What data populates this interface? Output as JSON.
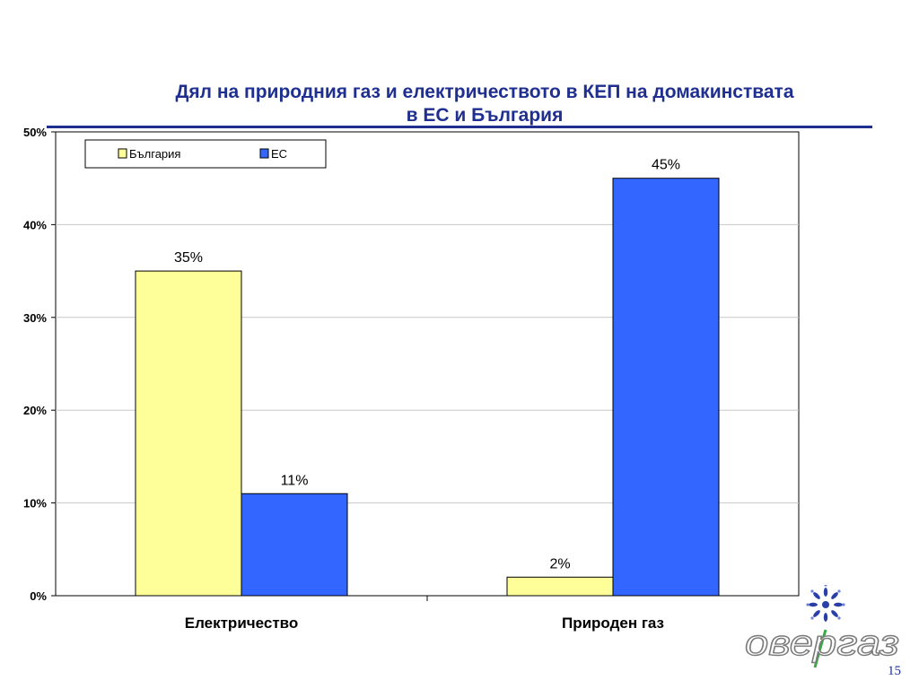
{
  "slide": {
    "title_line1": "Дял на природния газ и електричеството в КЕП на домакинствата",
    "title_line2": "в ЕС и България",
    "page_number": "15"
  },
  "logo": {
    "text": "овергаз"
  },
  "chart_data": {
    "type": "bar",
    "categories": [
      "Електричество",
      "Природен газ"
    ],
    "series": [
      {
        "name": "България",
        "values": [
          35,
          2
        ],
        "color": "#ffff99"
      },
      {
        "name": "ЕС",
        "values": [
          11,
          45
        ],
        "color": "#3366ff"
      }
    ],
    "data_labels": [
      [
        "35%",
        "2%"
      ],
      [
        "11%",
        "45%"
      ]
    ],
    "ylim": [
      0,
      50
    ],
    "yticks": [
      "0%",
      "10%",
      "20%",
      "30%",
      "40%",
      "50%"
    ],
    "grid": true,
    "legend": "top-left"
  }
}
